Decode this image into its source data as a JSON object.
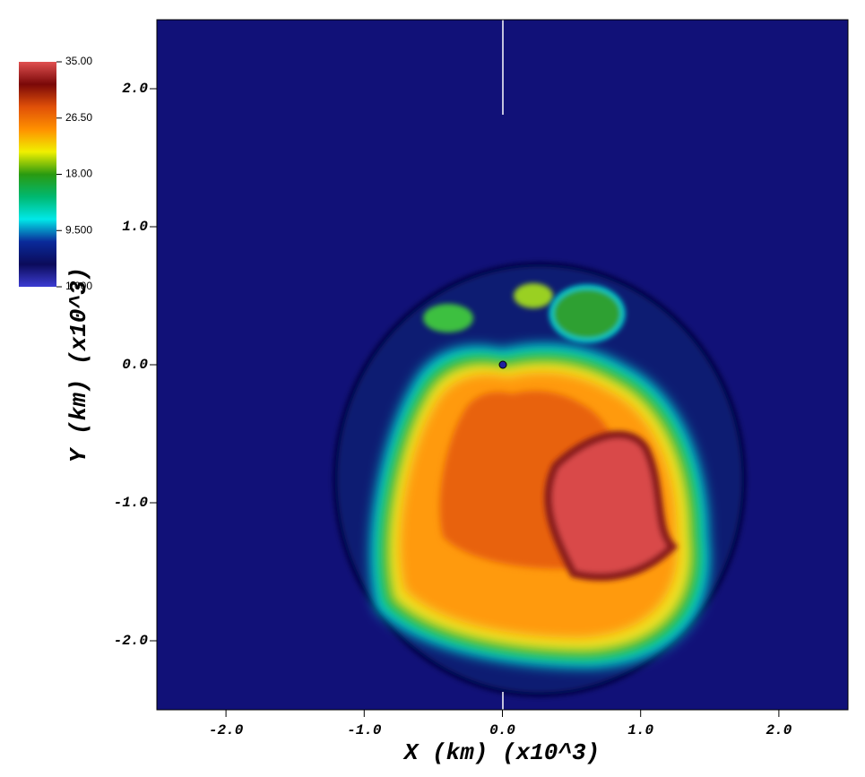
{
  "chart_data": {
    "type": "image",
    "xlabel": "X (km) (x10^3)",
    "ylabel": "Y (km) (x10^3)",
    "xlim": [
      -2.5,
      2.5
    ],
    "ylim": [
      -2.5,
      2.5
    ],
    "xticks": [
      {
        "value": -2,
        "label": "-2.0"
      },
      {
        "value": -1,
        "label": "-1.0"
      },
      {
        "value": 0,
        "label": "0.0"
      },
      {
        "value": 1,
        "label": "1.0"
      },
      {
        "value": 2,
        "label": "2.0"
      }
    ],
    "yticks": [
      {
        "value": -2,
        "label": "-2.0"
      },
      {
        "value": -1,
        "label": "-1.0"
      },
      {
        "value": 0,
        "label": "0.0"
      },
      {
        "value": 1,
        "label": "1.0"
      },
      {
        "value": 2,
        "label": "2.0"
      }
    ],
    "background": "#111178",
    "colorbar": {
      "lim": [
        1,
        35
      ],
      "ticks": [
        {
          "value": 35,
          "label": "35.00"
        },
        {
          "value": 26.5,
          "label": "26.50"
        },
        {
          "value": 18,
          "label": "18.00"
        },
        {
          "value": 9.5,
          "label": "9.500"
        },
        {
          "value": 1,
          "label": "1.000"
        }
      ],
      "colormap": [
        "#3c3cd2",
        "#0b0b5a",
        "#0a2a9a",
        "#00e8e8",
        "#00b870",
        "#2a9a10",
        "#f0f000",
        "#ff9000",
        "#e05008",
        "#7a0808",
        "#e05050"
      ]
    }
  }
}
